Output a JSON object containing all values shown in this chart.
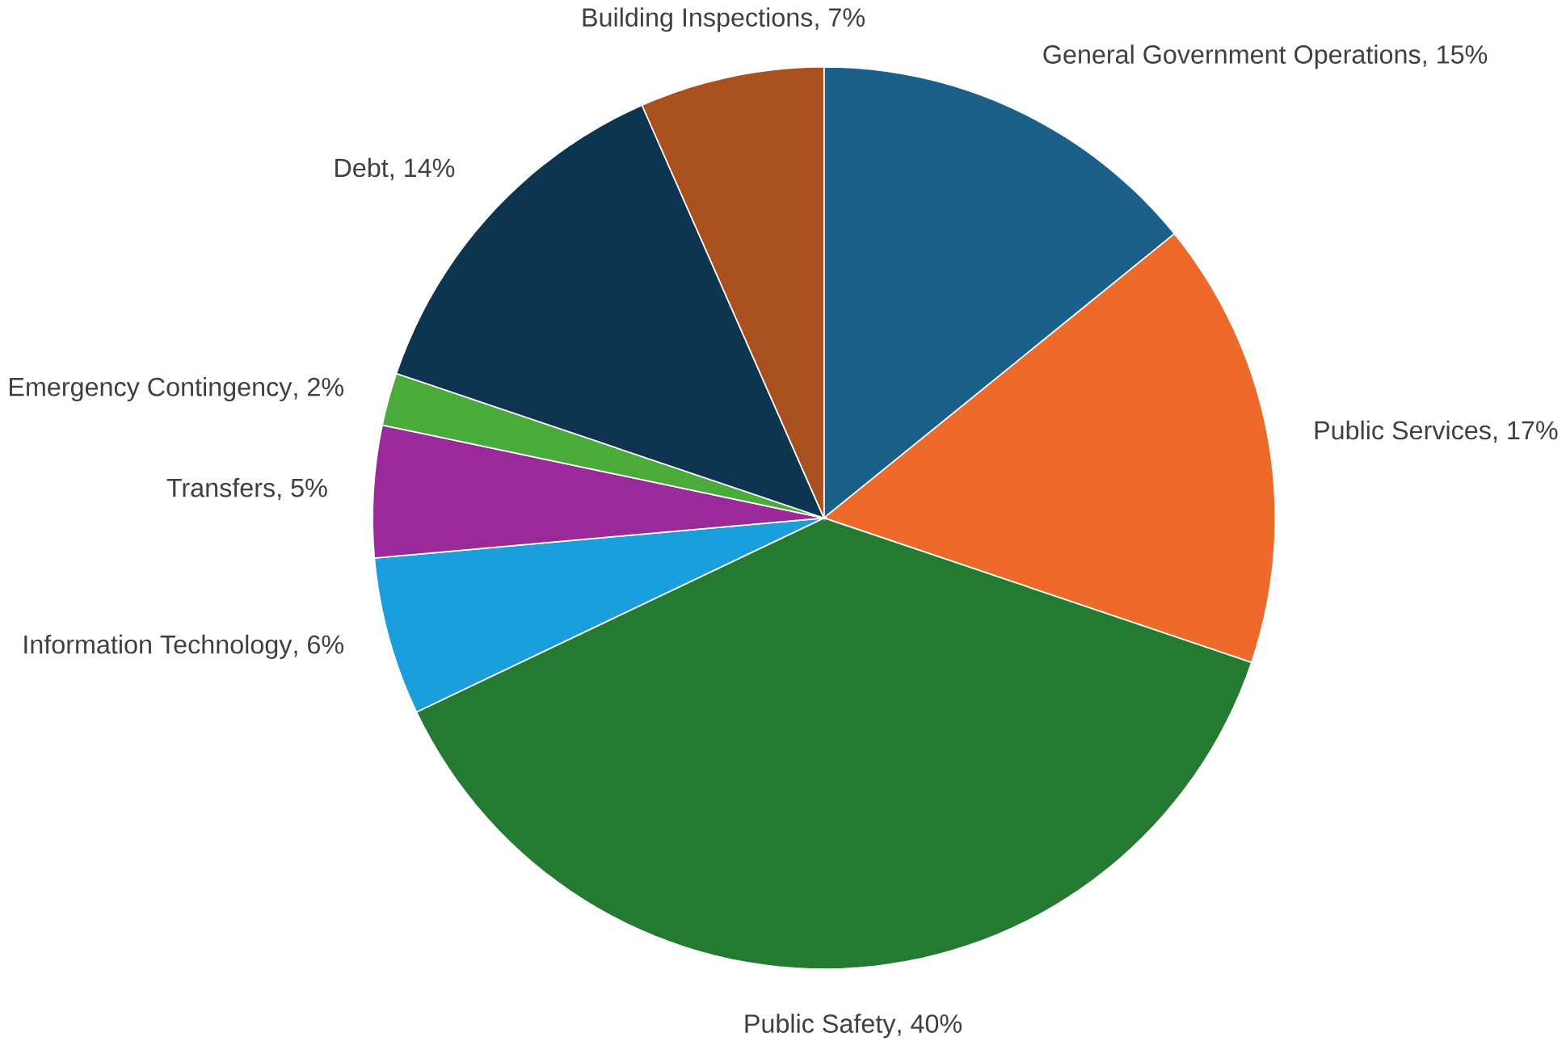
{
  "chart_data": {
    "type": "pie",
    "categories": [
      "General Government Operations",
      "Public Services",
      "Public Safety",
      "Information Technology",
      "Transfers",
      "Emergency Contingency",
      "Debt",
      "Building Inspections"
    ],
    "values": [
      15,
      17,
      40,
      6,
      5,
      2,
      14,
      7
    ],
    "value_labels": [
      ", 15%",
      ", 17%",
      ", 40%",
      ", 6%",
      ", 5%",
      ", 2%",
      ", 14%",
      ", 7%"
    ],
    "colors": [
      "#1a6088",
      "#ee6a2a",
      "#237a30",
      "#1a9fdc",
      "#9a2a9a",
      "#4aaa3a",
      "#0e3550",
      "#a8501e"
    ]
  }
}
